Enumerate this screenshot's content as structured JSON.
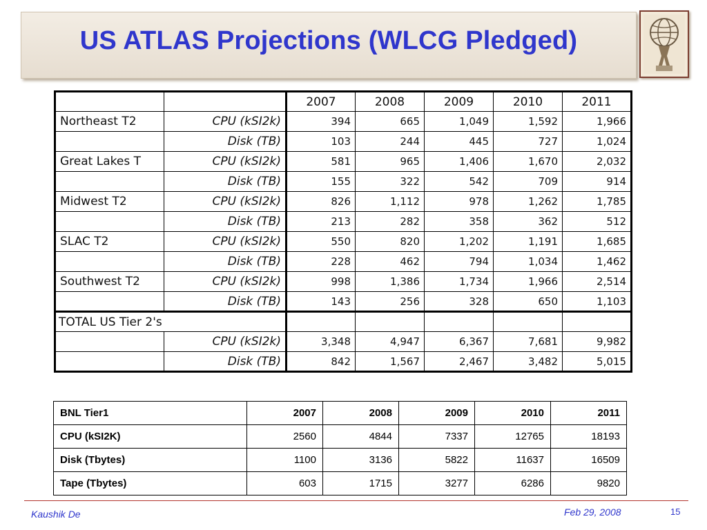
{
  "title": "US ATLAS Projections (WLCG Pledged)",
  "years": [
    "2007",
    "2008",
    "2009",
    "2010",
    "2011"
  ],
  "tier2_table": {
    "rows": [
      {
        "site": "Northeast T2",
        "type": "CPU (kSI2k)",
        "values": [
          "394",
          "665",
          "1,049",
          "1,592",
          "1,966"
        ]
      },
      {
        "site": "",
        "type": "Disk (TB)",
        "values": [
          "103",
          "244",
          "445",
          "727",
          "1,024"
        ]
      },
      {
        "site": "Great Lakes T",
        "type": "CPU (kSI2k)",
        "values": [
          "581",
          "965",
          "1,406",
          "1,670",
          "2,032"
        ]
      },
      {
        "site": "",
        "type": "Disk (TB)",
        "values": [
          "155",
          "322",
          "542",
          "709",
          "914"
        ]
      },
      {
        "site": "Midwest T2",
        "type": "CPU (kSI2k)",
        "values": [
          "826",
          "1,112",
          "978",
          "1,262",
          "1,785"
        ]
      },
      {
        "site": "",
        "type": "Disk (TB)",
        "values": [
          "213",
          "282",
          "358",
          "362",
          "512"
        ]
      },
      {
        "site": "SLAC T2",
        "type": "CPU (kSI2k)",
        "values": [
          "550",
          "820",
          "1,202",
          "1,191",
          "1,685"
        ]
      },
      {
        "site": "",
        "type": "Disk (TB)",
        "values": [
          "228",
          "462",
          "794",
          "1,034",
          "1,462"
        ]
      },
      {
        "site": "Southwest T2",
        "type": "CPU (kSI2k)",
        "values": [
          "998",
          "1,386",
          "1,734",
          "1,966",
          "2,514"
        ]
      },
      {
        "site": "",
        "type": "Disk (TB)",
        "values": [
          "143",
          "256",
          "328",
          "650",
          "1,103"
        ]
      }
    ],
    "total_label": "TOTAL US Tier 2's",
    "total_rows": [
      {
        "type": "CPU (kSI2k)",
        "values": [
          "3,348",
          "4,947",
          "6,367",
          "7,681",
          "9,982"
        ]
      },
      {
        "type": "Disk (TB)",
        "values": [
          "842",
          "1,567",
          "2,467",
          "3,482",
          "5,015"
        ]
      }
    ]
  },
  "bnl_table": {
    "header": "BNL Tier1",
    "years": [
      "2007",
      "2008",
      "2009",
      "2010",
      "2011"
    ],
    "rows": [
      {
        "label": "CPU (kSI2K)",
        "values": [
          "2560",
          "4844",
          "7337",
          "12765",
          "18193"
        ]
      },
      {
        "label": "Disk (Tbytes)",
        "values": [
          "1100",
          "3136",
          "5822",
          "11637",
          "16509"
        ]
      },
      {
        "label": "Tape (Tbytes)",
        "values": [
          "603",
          "1715",
          "3277",
          "6286",
          "9820"
        ]
      }
    ]
  },
  "footer": {
    "author": "Kaushik De",
    "date": "Feb 29, 2008",
    "page": "15"
  },
  "colors": {
    "title": "#2f36cc",
    "footer_line": "#b2322c",
    "title_bar": "#e9e1d5"
  }
}
